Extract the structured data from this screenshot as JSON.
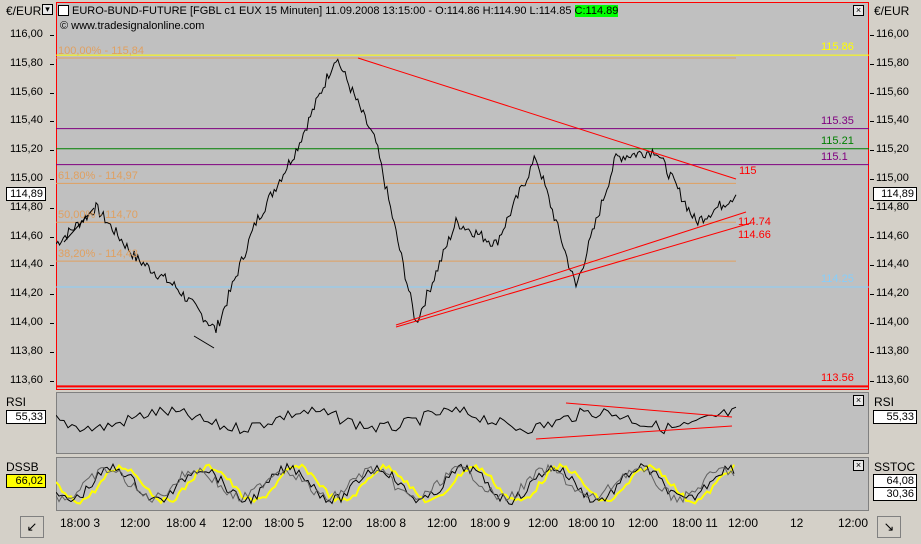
{
  "window": {
    "title": "EURO-BUND-FUTURE [FGBL c1 EUX  15 Minuten] 11.09.2008 13:15:00 - O:114.86 H:114.90 L:114.85",
    "close_value": "C:114.89",
    "watermark": "© www.tradesignalonline.com"
  },
  "axis_label_left": "€/EUR",
  "axis_label_right": "€/EUR",
  "price_axis": {
    "ticks": [
      "116,00",
      "115,80",
      "115,60",
      "115,40",
      "115,20",
      "115,00",
      "114,80",
      "114,60",
      "114,40",
      "114,20",
      "114,00",
      "113,80",
      "113,60"
    ],
    "current_left": "114,89",
    "current_right": "114,89"
  },
  "fib_labels": [
    {
      "text": "100,00% - 115,84",
      "level": 115.84
    },
    {
      "text": "61,80% - 114,97",
      "level": 114.97
    },
    {
      "text": "50,00% - 114,70",
      "level": 114.7
    },
    {
      "text": "38,20% - 114,43",
      "level": 114.43
    }
  ],
  "hlines": [
    {
      "label": "115.86",
      "value": 115.86,
      "color": "#ffff00"
    },
    {
      "label": "115.35",
      "value": 115.35,
      "color": "#800080"
    },
    {
      "label": "115.21",
      "value": 115.21,
      "color": "#008000"
    },
    {
      "label": "115.1",
      "value": 115.1,
      "color": "#800080"
    },
    {
      "label": "114.25",
      "value": 114.25,
      "color": "#87cefa"
    },
    {
      "label": "113.56",
      "value": 113.56,
      "color": "#ff0000"
    }
  ],
  "trend_labels": [
    "115",
    "114.74",
    "114.66"
  ],
  "rsi": {
    "name": "RSI",
    "value": "55,33",
    "right_value": "55,33"
  },
  "dssb": {
    "name": "DSSB",
    "value": "66,02",
    "right_name": "SSTOC",
    "right_value1": "64,08",
    "right_value2": "30,36"
  },
  "x_axis": [
    "18:00 3",
    "12:00",
    "18:00 4",
    "12:00",
    "18:00 5",
    "12:00",
    "18:00 8",
    "12:00",
    "18:00 9",
    "12:00",
    "18:00 10",
    "12:00",
    "18:00 11",
    "12:00",
    "12",
    "12:00"
  ],
  "chart_data": {
    "type": "line",
    "title": "EURO-BUND-FUTURE [FGBL c1 EUX 15 Minuten]",
    "ylabel": "€/EUR",
    "ylim": [
      113.5,
      116.1
    ],
    "x": [
      "3 18:00",
      "4 06:00",
      "4 12:00",
      "4 18:00",
      "5 06:00",
      "5 12:00",
      "5 18:00",
      "8 06:00",
      "8 12:00",
      "8 18:00",
      "9 06:00",
      "9 12:00",
      "9 18:00",
      "10 06:00",
      "10 12:00",
      "10 18:00",
      "11 06:00",
      "11 12:00"
    ],
    "series": [
      {
        "name": "FGBL c1",
        "values": [
          114.55,
          114.8,
          114.45,
          114.25,
          113.95,
          114.7,
          115.2,
          115.85,
          115.25,
          114.0,
          114.7,
          114.55,
          115.15,
          114.25,
          115.15,
          115.2,
          114.7,
          114.89
        ]
      }
    ],
    "grid": false
  }
}
